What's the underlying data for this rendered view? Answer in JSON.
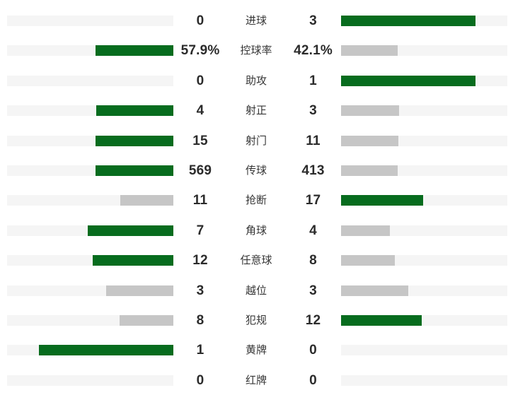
{
  "panel": {
    "title": "match-statistics-comparison"
  },
  "colors": {
    "green": "#076C1E",
    "gray": "#C6C6C6",
    "track": "#F5F5F5",
    "value_text": "#2B2B2B",
    "label_text": "#363636",
    "background": "#FFFFFF"
  },
  "stats": {
    "rows": [
      {
        "label": "进球",
        "home_value": "0",
        "away_value": "3",
        "home_pct": 0,
        "away_pct": 81,
        "home_tone": "none",
        "away_tone": "green"
      },
      {
        "label": "控球率",
        "home_value": "57.9%",
        "away_value": "42.1%",
        "home_pct": 46.9,
        "away_pct": 34.1,
        "home_tone": "green",
        "away_tone": "gray"
      },
      {
        "label": "助攻",
        "home_value": "0",
        "away_value": "1",
        "home_pct": 0,
        "away_pct": 81,
        "home_tone": "none",
        "away_tone": "green"
      },
      {
        "label": "射正",
        "home_value": "4",
        "away_value": "3",
        "home_pct": 46.3,
        "away_pct": 34.7,
        "home_tone": "green",
        "away_tone": "gray"
      },
      {
        "label": "射门",
        "home_value": "15",
        "away_value": "11",
        "home_pct": 46.7,
        "away_pct": 34.3,
        "home_tone": "green",
        "away_tone": "gray"
      },
      {
        "label": "传球",
        "home_value": "569",
        "away_value": "413",
        "home_pct": 46.9,
        "away_pct": 34.1,
        "home_tone": "green",
        "away_tone": "gray"
      },
      {
        "label": "抢断",
        "home_value": "11",
        "away_value": "17",
        "home_pct": 31.8,
        "away_pct": 49.2,
        "home_tone": "gray",
        "away_tone": "green"
      },
      {
        "label": "角球",
        "home_value": "7",
        "away_value": "4",
        "home_pct": 51.5,
        "away_pct": 29.5,
        "home_tone": "green",
        "away_tone": "gray"
      },
      {
        "label": "任意球",
        "home_value": "12",
        "away_value": "8",
        "home_pct": 48.6,
        "away_pct": 32.4,
        "home_tone": "green",
        "away_tone": "gray"
      },
      {
        "label": "越位",
        "home_value": "3",
        "away_value": "3",
        "home_pct": 40.5,
        "away_pct": 40.5,
        "home_tone": "gray",
        "away_tone": "gray"
      },
      {
        "label": "犯规",
        "home_value": "8",
        "away_value": "12",
        "home_pct": 32.4,
        "away_pct": 48.6,
        "home_tone": "gray",
        "away_tone": "green"
      },
      {
        "label": "黄牌",
        "home_value": "1",
        "away_value": "0",
        "home_pct": 81,
        "away_pct": 0,
        "home_tone": "green",
        "away_tone": "none"
      },
      {
        "label": "红牌",
        "home_value": "0",
        "away_value": "0",
        "home_pct": 0,
        "away_pct": 0,
        "home_tone": "none",
        "away_tone": "none"
      }
    ]
  },
  "chart_data": {
    "type": "bar",
    "orientation": "horizontal-paired-from-center",
    "title": "",
    "categories": [
      "进球",
      "控球率",
      "助攻",
      "射正",
      "射门",
      "传球",
      "抢断",
      "角球",
      "任意球",
      "越位",
      "犯规",
      "黄牌",
      "红牌"
    ],
    "series": [
      {
        "name": "home",
        "values": [
          0,
          57.9,
          0,
          4,
          15,
          569,
          11,
          7,
          12,
          3,
          8,
          1,
          0
        ],
        "display": [
          "0",
          "57.9%",
          "0",
          "4",
          "15",
          "569",
          "11",
          "7",
          "12",
          "3",
          "8",
          "1",
          "0"
        ]
      },
      {
        "name": "away",
        "values": [
          3,
          42.1,
          1,
          3,
          11,
          413,
          17,
          4,
          8,
          3,
          12,
          0,
          0
        ],
        "display": [
          "3",
          "42.1%",
          "1",
          "3",
          "11",
          "413",
          "17",
          "4",
          "8",
          "3",
          "12",
          "0",
          "0"
        ]
      }
    ],
    "bar_rule": "bar length proportional to value/(home+away), max fill 81% of track; higher value colored green #076C1E, lower value gray #C6C6C6, zero value no bar; tie both gray",
    "legend": "none",
    "grid": false
  }
}
